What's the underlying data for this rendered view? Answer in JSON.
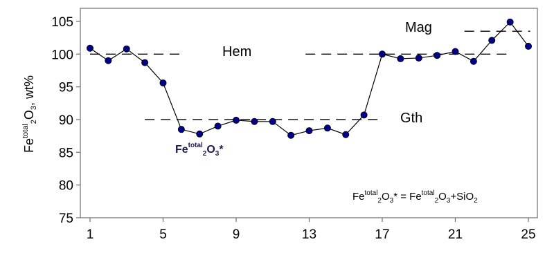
{
  "chart_data": {
    "type": "line",
    "ylabel": {
      "base": "Fe",
      "sup": "total",
      "sub": "2",
      "mid": "O",
      "sub2": "3",
      "tail": ", wt%"
    },
    "xticks": [
      "1",
      "5",
      "9",
      "13",
      "17",
      "21",
      "25"
    ],
    "yticks": [
      "75",
      "80",
      "85",
      "90",
      "95",
      "100",
      "105"
    ],
    "xlim": [
      1,
      25
    ],
    "ylim": [
      75,
      107
    ],
    "series": [
      {
        "x": [
          1,
          2,
          3,
          4,
          5,
          6,
          7,
          8,
          9,
          10,
          11,
          12,
          13,
          14,
          15,
          16,
          17,
          18,
          19,
          20,
          21,
          22,
          23,
          24,
          25
        ],
        "values": [
          100.9,
          99.0,
          100.8,
          98.7,
          95.6,
          88.5,
          87.8,
          89.0,
          89.9,
          89.7,
          89.7,
          87.6,
          88.3,
          88.7,
          87.7,
          90.7,
          100.0,
          99.3,
          99.4,
          99.8,
          100.4,
          98.9,
          102.1,
          104.9,
          101.2
        ],
        "color": "#00008b"
      }
    ],
    "reference_lines": [
      {
        "label": "Hem",
        "y": 100,
        "segments": [
          [
            1,
            6.2
          ],
          [
            12.8,
            24
          ]
        ]
      },
      {
        "label": "Gth",
        "y": 90,
        "segments": [
          [
            4,
            16.8
          ]
        ]
      },
      {
        "label": "Mag",
        "y": 103.5,
        "segments": [
          [
            21.5,
            25.1
          ]
        ]
      }
    ],
    "annotation_point": {
      "base": "Fe",
      "sup": "total",
      "sub": "2",
      "mid": "O",
      "sub2": "3",
      "tail": "*"
    },
    "formula": {
      "p1": "Fe",
      "p2": "total",
      "p3": "2",
      "p4": "O",
      "p5": "3",
      "p6": "* = Fe",
      "p7": "total",
      "p8": "2",
      "p9": "O",
      "p10": "3",
      "p11": "+SiO",
      "p12": "2"
    }
  }
}
